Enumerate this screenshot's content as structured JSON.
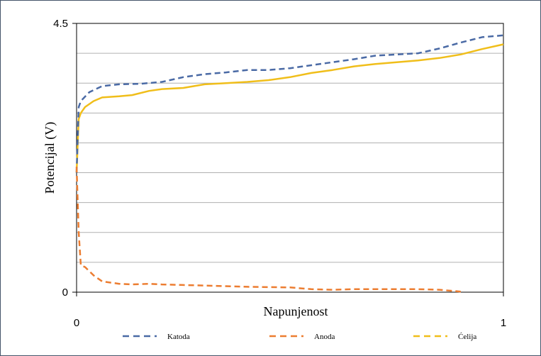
{
  "chart_data": {
    "type": "line",
    "xlabel": "Napunjenost",
    "ylabel": "Potencijal (V)",
    "xlim": [
      0,
      1
    ],
    "ylim": [
      0,
      4.5
    ],
    "x_ticks": [
      "0",
      "1"
    ],
    "y_ticks": [
      "0",
      "4.5"
    ],
    "grid": "horizontal",
    "legend_placement": "bottom",
    "series": [
      {
        "name": "Katoda",
        "color": "#4a6aa5",
        "dash": "dashed",
        "points": [
          [
            0.0,
            2.0
          ],
          [
            0.005,
            3.1
          ],
          [
            0.01,
            3.2
          ],
          [
            0.03,
            3.35
          ],
          [
            0.06,
            3.45
          ],
          [
            0.1,
            3.48
          ],
          [
            0.15,
            3.49
          ],
          [
            0.2,
            3.52
          ],
          [
            0.25,
            3.6
          ],
          [
            0.3,
            3.65
          ],
          [
            0.35,
            3.68
          ],
          [
            0.4,
            3.72
          ],
          [
            0.45,
            3.72
          ],
          [
            0.5,
            3.75
          ],
          [
            0.55,
            3.8
          ],
          [
            0.6,
            3.85
          ],
          [
            0.65,
            3.9
          ],
          [
            0.7,
            3.96
          ],
          [
            0.75,
            3.98
          ],
          [
            0.8,
            4.0
          ],
          [
            0.85,
            4.08
          ],
          [
            0.9,
            4.18
          ],
          [
            0.95,
            4.27
          ],
          [
            1.0,
            4.3
          ]
        ]
      },
      {
        "name": "Anoda",
        "color": "#ec7d31",
        "dash": "dashed",
        "points": [
          [
            0.0,
            2.1
          ],
          [
            0.005,
            1.0
          ],
          [
            0.01,
            0.45
          ],
          [
            0.02,
            0.42
          ],
          [
            0.04,
            0.28
          ],
          [
            0.06,
            0.18
          ],
          [
            0.1,
            0.14
          ],
          [
            0.13,
            0.13
          ],
          [
            0.17,
            0.14
          ],
          [
            0.2,
            0.13
          ],
          [
            0.25,
            0.12
          ],
          [
            0.3,
            0.11
          ],
          [
            0.4,
            0.09
          ],
          [
            0.5,
            0.08
          ],
          [
            0.55,
            0.05
          ],
          [
            0.6,
            0.04
          ],
          [
            0.65,
            0.05
          ],
          [
            0.7,
            0.05
          ],
          [
            0.8,
            0.05
          ],
          [
            0.85,
            0.04
          ],
          [
            0.9,
            0.01
          ]
        ]
      },
      {
        "name": "Ćelija",
        "color": "#f0be1a",
        "dash": "solid",
        "points": [
          [
            0.0,
            2.0
          ],
          [
            0.005,
            2.9
          ],
          [
            0.01,
            3.0
          ],
          [
            0.02,
            3.1
          ],
          [
            0.04,
            3.2
          ],
          [
            0.06,
            3.26
          ],
          [
            0.1,
            3.28
          ],
          [
            0.13,
            3.3
          ],
          [
            0.17,
            3.37
          ],
          [
            0.2,
            3.4
          ],
          [
            0.25,
            3.42
          ],
          [
            0.3,
            3.48
          ],
          [
            0.35,
            3.5
          ],
          [
            0.4,
            3.52
          ],
          [
            0.45,
            3.55
          ],
          [
            0.5,
            3.6
          ],
          [
            0.55,
            3.67
          ],
          [
            0.6,
            3.72
          ],
          [
            0.65,
            3.78
          ],
          [
            0.7,
            3.82
          ],
          [
            0.75,
            3.85
          ],
          [
            0.8,
            3.88
          ],
          [
            0.85,
            3.92
          ],
          [
            0.9,
            3.98
          ],
          [
            0.95,
            4.07
          ],
          [
            1.0,
            4.15
          ]
        ]
      }
    ],
    "legend": [
      "Katoda",
      "Anoda",
      "Ćelija"
    ]
  }
}
